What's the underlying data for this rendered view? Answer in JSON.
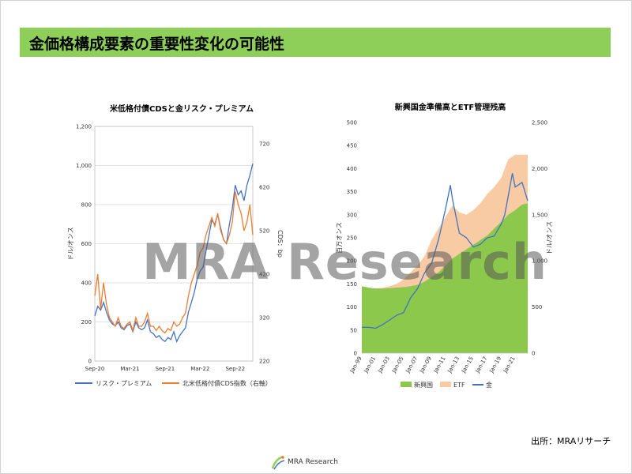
{
  "slide": {
    "title": "金価格構成要素の重要性変化の可能性",
    "watermark": "MRA Research",
    "source": "出所：MRAリサーチ",
    "footer_brand": "MRA Research"
  },
  "colors": {
    "title_bar": "#8ecf5a",
    "blue": "#4472c4",
    "orange": "#ed7d31",
    "green": "#8cc84b",
    "peach": "#f8cba4"
  },
  "chart_data": [
    {
      "type": "line",
      "title": "米低格付債CDSと金リスク・プレミアム",
      "ylabel": "ドル/オンス",
      "y2label": "CDS：bp",
      "ylim": [
        0,
        1200
      ],
      "y2lim": [
        220,
        760
      ],
      "yticks": [
        "0",
        "200",
        "400",
        "600",
        "800",
        "1,000",
        "1,200"
      ],
      "y2ticks": [
        "220",
        "320",
        "420",
        "520",
        "620",
        "720"
      ],
      "xticks": [
        "Sep-20",
        "Mar-21",
        "Sep-21",
        "Mar-22",
        "Sep-22"
      ],
      "xlim": [
        0,
        27
      ],
      "xtick_positions": [
        0,
        6,
        12,
        18,
        24
      ],
      "grid": true,
      "legend": "bottom",
      "series": [
        {
          "name": "リスク・プレミアム",
          "axis": "left",
          "color": "#4472c4",
          "x": [
            0,
            0.5,
            1,
            1.5,
            2,
            2.5,
            3,
            3.5,
            4,
            4.5,
            5,
            5.5,
            6,
            6.5,
            7,
            7.5,
            8,
            8.5,
            9,
            9.5,
            10,
            10.5,
            11,
            11.5,
            12,
            12.5,
            13,
            13.5,
            14,
            14.5,
            15,
            15.5,
            16,
            16.5,
            17,
            17.5,
            18,
            18.5,
            19,
            19.5,
            20,
            20.5,
            21,
            21.5,
            22,
            22.5,
            23,
            23.5,
            24,
            24.5,
            25,
            25.5,
            26,
            26.5,
            27
          ],
          "values": [
            230,
            280,
            260,
            300,
            250,
            210,
            190,
            180,
            200,
            170,
            160,
            180,
            190,
            150,
            200,
            170,
            160,
            170,
            210,
            150,
            140,
            120,
            130,
            110,
            100,
            120,
            110,
            150,
            100,
            130,
            150,
            170,
            250,
            300,
            350,
            420,
            460,
            480,
            560,
            640,
            720,
            700,
            750,
            680,
            620,
            600,
            700,
            780,
            900,
            850,
            870,
            820,
            900,
            950,
            1010
          ]
        },
        {
          "name": "北米低格付債CDS指数（右軸）",
          "axis": "right",
          "color": "#ed7d31",
          "x": [
            0,
            0.5,
            1,
            1.5,
            2,
            2.5,
            3,
            3.5,
            4,
            4.5,
            5,
            5.5,
            6,
            6.5,
            7,
            7.5,
            8,
            8.5,
            9,
            9.5,
            10,
            10.5,
            11,
            11.5,
            12,
            12.5,
            13,
            13.5,
            14,
            14.5,
            15,
            15.5,
            16,
            16.5,
            17,
            17.5,
            18,
            18.5,
            19,
            19.5,
            20,
            20.5,
            21,
            21.5,
            22,
            22.5,
            23,
            23.5,
            24,
            24.5,
            25,
            25.5,
            26,
            26.5,
            27
          ],
          "values": [
            370,
            420,
            340,
            400,
            350,
            320,
            310,
            300,
            320,
            300,
            295,
            305,
            310,
            290,
            320,
            300,
            300,
            310,
            330,
            300,
            300,
            290,
            300,
            290,
            285,
            295,
            290,
            310,
            300,
            305,
            320,
            330,
            370,
            400,
            420,
            440,
            470,
            480,
            510,
            530,
            550,
            530,
            560,
            520,
            500,
            490,
            510,
            540,
            610,
            580,
            560,
            520,
            540,
            580,
            510
          ]
        }
      ]
    },
    {
      "type": "area",
      "title": "新興国金準備高とETF管理残高",
      "ylabel": "百万オンス",
      "y2label": "ドル/オンス",
      "ylim": [
        0,
        500
      ],
      "y2lim": [
        0,
        2500
      ],
      "yticks": [
        "0",
        "50",
        "100",
        "150",
        "200",
        "250",
        "300",
        "350",
        "400",
        "450",
        "500"
      ],
      "y2ticks": [
        "0",
        "500",
        "1,000",
        "1,500",
        "2,000",
        "2,500"
      ],
      "xticks": [
        "Jan-99",
        "Jan-01",
        "Jan-03",
        "Jan-05",
        "Jan-07",
        "Jan-09",
        "Jan-11",
        "Jan-13",
        "Jan-15",
        "Jan-17",
        "Jan-19",
        "Jan-21"
      ],
      "xlim": [
        1999,
        2022.8
      ],
      "grid": false,
      "legend": "bottom",
      "series": [
        {
          "name": "新興国",
          "axis": "left",
          "kind": "area",
          "color": "#8cc84b",
          "x": [
            1999,
            2000,
            2001,
            2002,
            2003,
            2004,
            2005,
            2006,
            2007,
            2008,
            2009,
            2010,
            2011,
            2012,
            2013,
            2014,
            2015,
            2016,
            2017,
            2018,
            2019,
            2020,
            2021,
            2022,
            2022.8
          ],
          "values": [
            145,
            142,
            140,
            140,
            141,
            142,
            143,
            145,
            148,
            155,
            165,
            175,
            190,
            205,
            215,
            225,
            235,
            245,
            255,
            270,
            285,
            300,
            310,
            322,
            325
          ]
        },
        {
          "name": "ETF",
          "axis": "left",
          "kind": "area",
          "color": "#f8cba4",
          "x": [
            1999,
            2000,
            2001,
            2002,
            2003,
            2004,
            2005,
            2006,
            2007,
            2008,
            2009,
            2010,
            2011,
            2012,
            2013,
            2014,
            2015,
            2016,
            2017,
            2018,
            2019,
            2020,
            2021,
            2022,
            2022.8
          ],
          "values": [
            145,
            142,
            140,
            142,
            145,
            150,
            160,
            175,
            190,
            210,
            245,
            270,
            295,
            320,
            305,
            300,
            310,
            325,
            345,
            360,
            380,
            420,
            430,
            430,
            430
          ]
        },
        {
          "name": "金",
          "axis": "right",
          "kind": "line",
          "color": "#4472c4",
          "x": [
            1999,
            2000,
            2001,
            2002,
            2003,
            2004,
            2005,
            2006,
            2007,
            2008,
            2009,
            2010,
            2011,
            2011.7,
            2012,
            2013,
            2014,
            2015,
            2016,
            2017,
            2018,
            2019,
            2019.5,
            2020,
            2020.6,
            2021,
            2022,
            2022.8
          ],
          "values": [
            280,
            280,
            270,
            310,
            360,
            410,
            440,
            600,
            700,
            870,
            970,
            1230,
            1560,
            1820,
            1670,
            1300,
            1250,
            1150,
            1180,
            1250,
            1270,
            1400,
            1500,
            1700,
            1950,
            1800,
            1850,
            1650
          ]
        }
      ]
    }
  ]
}
